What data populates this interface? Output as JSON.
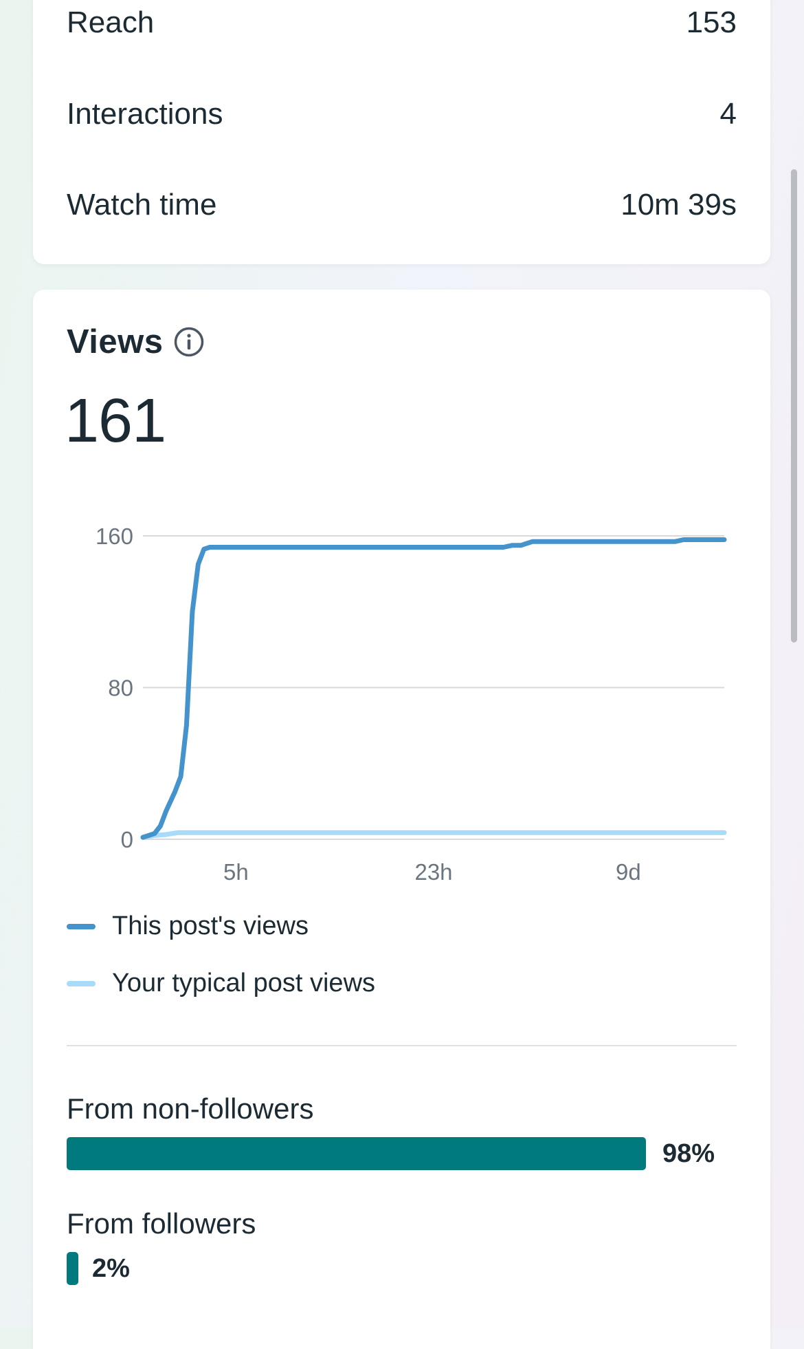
{
  "metrics": [
    {
      "label": "Reach",
      "value": "153"
    },
    {
      "label": "Interactions",
      "value": "4"
    },
    {
      "label": "Watch time",
      "value": "10m 39s"
    }
  ],
  "views": {
    "title": "Views",
    "info_icon": "info-circle-icon",
    "total": "161"
  },
  "chart_data": {
    "type": "line",
    "y_ticks": [
      "0",
      "80",
      "160"
    ],
    "ylim": [
      0,
      160
    ],
    "x_ticks": [
      "5h",
      "23h",
      "9d"
    ],
    "grid": true,
    "series": [
      {
        "name": "This post's views",
        "color": "#4593cc",
        "points": [
          [
            0,
            1
          ],
          [
            0.02,
            3
          ],
          [
            0.03,
            7
          ],
          [
            0.04,
            15
          ],
          [
            0.055,
            25
          ],
          [
            0.065,
            33
          ],
          [
            0.075,
            60
          ],
          [
            0.085,
            120
          ],
          [
            0.095,
            145
          ],
          [
            0.105,
            153
          ],
          [
            0.115,
            154
          ],
          [
            0.2,
            154
          ],
          [
            0.4,
            154
          ],
          [
            0.62,
            154
          ],
          [
            0.635,
            155
          ],
          [
            0.65,
            155
          ],
          [
            0.67,
            157
          ],
          [
            0.8,
            157
          ],
          [
            0.915,
            157
          ],
          [
            0.93,
            158
          ],
          [
            1.0,
            158
          ]
        ]
      },
      {
        "name": "Your typical post views",
        "color": "#a8daf9",
        "points": [
          [
            0,
            1
          ],
          [
            0.02,
            2
          ],
          [
            0.04,
            2.5
          ],
          [
            0.06,
            3.5
          ],
          [
            0.1,
            3.5
          ],
          [
            0.5,
            3.5
          ],
          [
            1.0,
            3.5
          ]
        ]
      }
    ]
  },
  "legend": [
    {
      "label": "This post's views",
      "color": "#4593cc"
    },
    {
      "label": "Your typical post views",
      "color": "#a8daf9"
    }
  ],
  "breakdown": [
    {
      "label": "From non-followers",
      "percent_label": "98%",
      "fraction": 0.98
    },
    {
      "label": "From followers",
      "percent_label": "2%",
      "fraction": 0.02
    }
  ],
  "colors": {
    "bar_fill": "#007a7c",
    "text": "#1c2b33",
    "grid": "#d9d9d9"
  }
}
